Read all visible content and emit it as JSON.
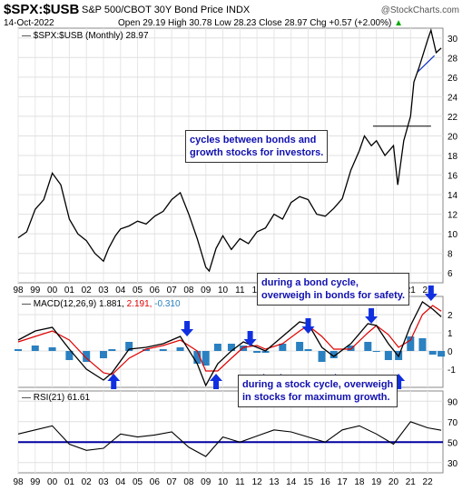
{
  "header": {
    "symbol": "$SPX:$USB",
    "description": "S&P 500/CBOT 30Y Bond Price INDX",
    "credit": "@StockCharts.com",
    "date": "14-Oct-2022",
    "stats": "Open 29.19  High 30.78  Low 28.23  Close 28.97  Chg +0.57 (+2.00%)",
    "up_arrow": "▲"
  },
  "annotations": {
    "a1": [
      "cycles between bonds and",
      "growth stocks for investors."
    ],
    "a2": [
      "during a bond cycle,",
      "overweigh in bonds for safety."
    ],
    "a3": [
      "during a stock cycle, overweigh",
      "in stocks for maximum growth."
    ]
  },
  "colors": {
    "price": "#000000",
    "macd": "#000000",
    "signal": "#e00000",
    "hist": "#2a80c0",
    "arrow": "#1030e0",
    "rsi_line": "#000000",
    "hline": "#0000a0"
  },
  "chart_data": [
    {
      "type": "line",
      "panel": "price",
      "label": "$SPX:$USB (Monthly) 28.97",
      "x": [
        1998,
        1998.5,
        1999,
        1999.5,
        2000,
        2000.5,
        2001,
        2001.5,
        2002,
        2002.5,
        2003,
        2003.3,
        2003.7,
        2004,
        2004.5,
        2005,
        2005.5,
        2006,
        2006.5,
        2007,
        2007.5,
        2008,
        2008.5,
        2009,
        2009.2,
        2009.6,
        2010,
        2010.5,
        2011,
        2011.5,
        2012,
        2012.5,
        2013,
        2013.5,
        2014,
        2014.5,
        2015,
        2015.5,
        2016,
        2016.5,
        2017,
        2017.5,
        2018,
        2018.3,
        2018.7,
        2019,
        2019.5,
        2020,
        2020.25,
        2020.6,
        2021,
        2021.2,
        2021.5,
        2022,
        2022.2,
        2022.5,
        2022.8
      ],
      "values": [
        9.6,
        10.2,
        12.5,
        13.5,
        16.2,
        15.0,
        11.5,
        10.0,
        9.3,
        8.0,
        7.2,
        8.5,
        9.8,
        10.5,
        10.8,
        11.3,
        11.0,
        11.8,
        12.3,
        13.5,
        14.2,
        12.0,
        9.5,
        6.6,
        6.2,
        8.5,
        9.8,
        8.4,
        9.5,
        9.0,
        10.2,
        10.6,
        12.0,
        11.5,
        13.2,
        13.8,
        13.5,
        12.0,
        11.8,
        12.6,
        13.6,
        16.5,
        18.5,
        20.0,
        19.0,
        19.5,
        18.0,
        19.0,
        15.0,
        19.5,
        22.0,
        25.5,
        27.0,
        29.8,
        30.8,
        28.5,
        28.97
      ],
      "ylim": [
        5,
        31
      ],
      "yticks": [
        6,
        8,
        10,
        12,
        14,
        16,
        18,
        20,
        22,
        24,
        26,
        28,
        30
      ],
      "hline": 21.0
    },
    {
      "type": "line",
      "panel": "macd",
      "label": "MACD(12,26,9)",
      "values_text": [
        "1.881",
        "2.191",
        "-0.310"
      ],
      "x": [
        1998,
        1999,
        2000,
        2001,
        2002,
        2003,
        2003.5,
        2004.5,
        2005.5,
        2006.5,
        2007.5,
        2008.5,
        2009,
        2009.7,
        2010.5,
        2011.2,
        2012,
        2012.5,
        2013.5,
        2014.5,
        2015,
        2015.8,
        2016.5,
        2017.5,
        2018.5,
        2019,
        2019.7,
        2020.3,
        2021,
        2021.7,
        2022.3,
        2022.8
      ],
      "series": [
        {
          "name": "MACD",
          "values": [
            0.6,
            1.1,
            1.3,
            0.1,
            -1.0,
            -1.6,
            -1.2,
            0.1,
            0.2,
            0.4,
            0.8,
            -0.7,
            -1.9,
            -0.7,
            0.0,
            0.5,
            0.2,
            0.0,
            0.8,
            1.6,
            1.5,
            0.2,
            -0.3,
            0.4,
            1.5,
            1.4,
            0.4,
            -0.3,
            1.4,
            2.7,
            2.3,
            1.881
          ]
        },
        {
          "name": "Signal",
          "values": [
            0.5,
            0.8,
            1.1,
            0.6,
            -0.4,
            -1.2,
            -1.3,
            -0.4,
            0.1,
            0.3,
            0.6,
            0.0,
            -1.1,
            -1.1,
            -0.4,
            0.2,
            0.3,
            0.1,
            0.4,
            1.1,
            1.4,
            0.8,
            0.1,
            0.1,
            1.0,
            1.4,
            0.9,
            0.2,
            0.6,
            2.0,
            2.5,
            2.191
          ]
        }
      ],
      "ylim": [
        -2,
        3
      ],
      "yticks": [
        -1,
        0,
        1,
        2
      ],
      "arrows": [
        {
          "x": 2003.6,
          "dir": "up"
        },
        {
          "x": 2007.9,
          "dir": "down"
        },
        {
          "x": 2009.6,
          "dir": "up"
        },
        {
          "x": 2011.6,
          "dir": "down"
        },
        {
          "x": 2012.4,
          "dir": "up"
        },
        {
          "x": 2013.4,
          "dir": "up"
        },
        {
          "x": 2015.0,
          "dir": "down"
        },
        {
          "x": 2016.6,
          "dir": "up"
        },
        {
          "x": 2018.7,
          "dir": "down"
        },
        {
          "x": 2020.3,
          "dir": "up"
        },
        {
          "x": 2022.2,
          "dir": "down"
        }
      ]
    },
    {
      "type": "line",
      "panel": "rsi",
      "label": "RSI(21) 61.61",
      "x": [
        1998,
        1999,
        2000,
        2001,
        2002,
        2003,
        2004,
        2005,
        2006,
        2007,
        2008,
        2009,
        2010,
        2011,
        2012,
        2013,
        2014,
        2015,
        2016,
        2017,
        2018,
        2019,
        2020,
        2021,
        2022,
        2022.8
      ],
      "values": [
        58,
        62,
        66,
        48,
        42,
        44,
        58,
        55,
        57,
        60,
        45,
        36,
        55,
        50,
        56,
        62,
        60,
        55,
        50,
        62,
        66,
        58,
        48,
        70,
        64,
        61.61
      ],
      "ylim": [
        20,
        100
      ],
      "yticks": [
        30,
        50,
        70,
        90
      ],
      "hline": 50
    }
  ],
  "xaxis": {
    "labels": [
      "98",
      "99",
      "00",
      "01",
      "02",
      "03",
      "04",
      "05",
      "06",
      "07",
      "08",
      "09",
      "10",
      "11",
      "12",
      "13",
      "14",
      "15",
      "16",
      "17",
      "18",
      "19",
      "20",
      "21",
      "22"
    ]
  }
}
